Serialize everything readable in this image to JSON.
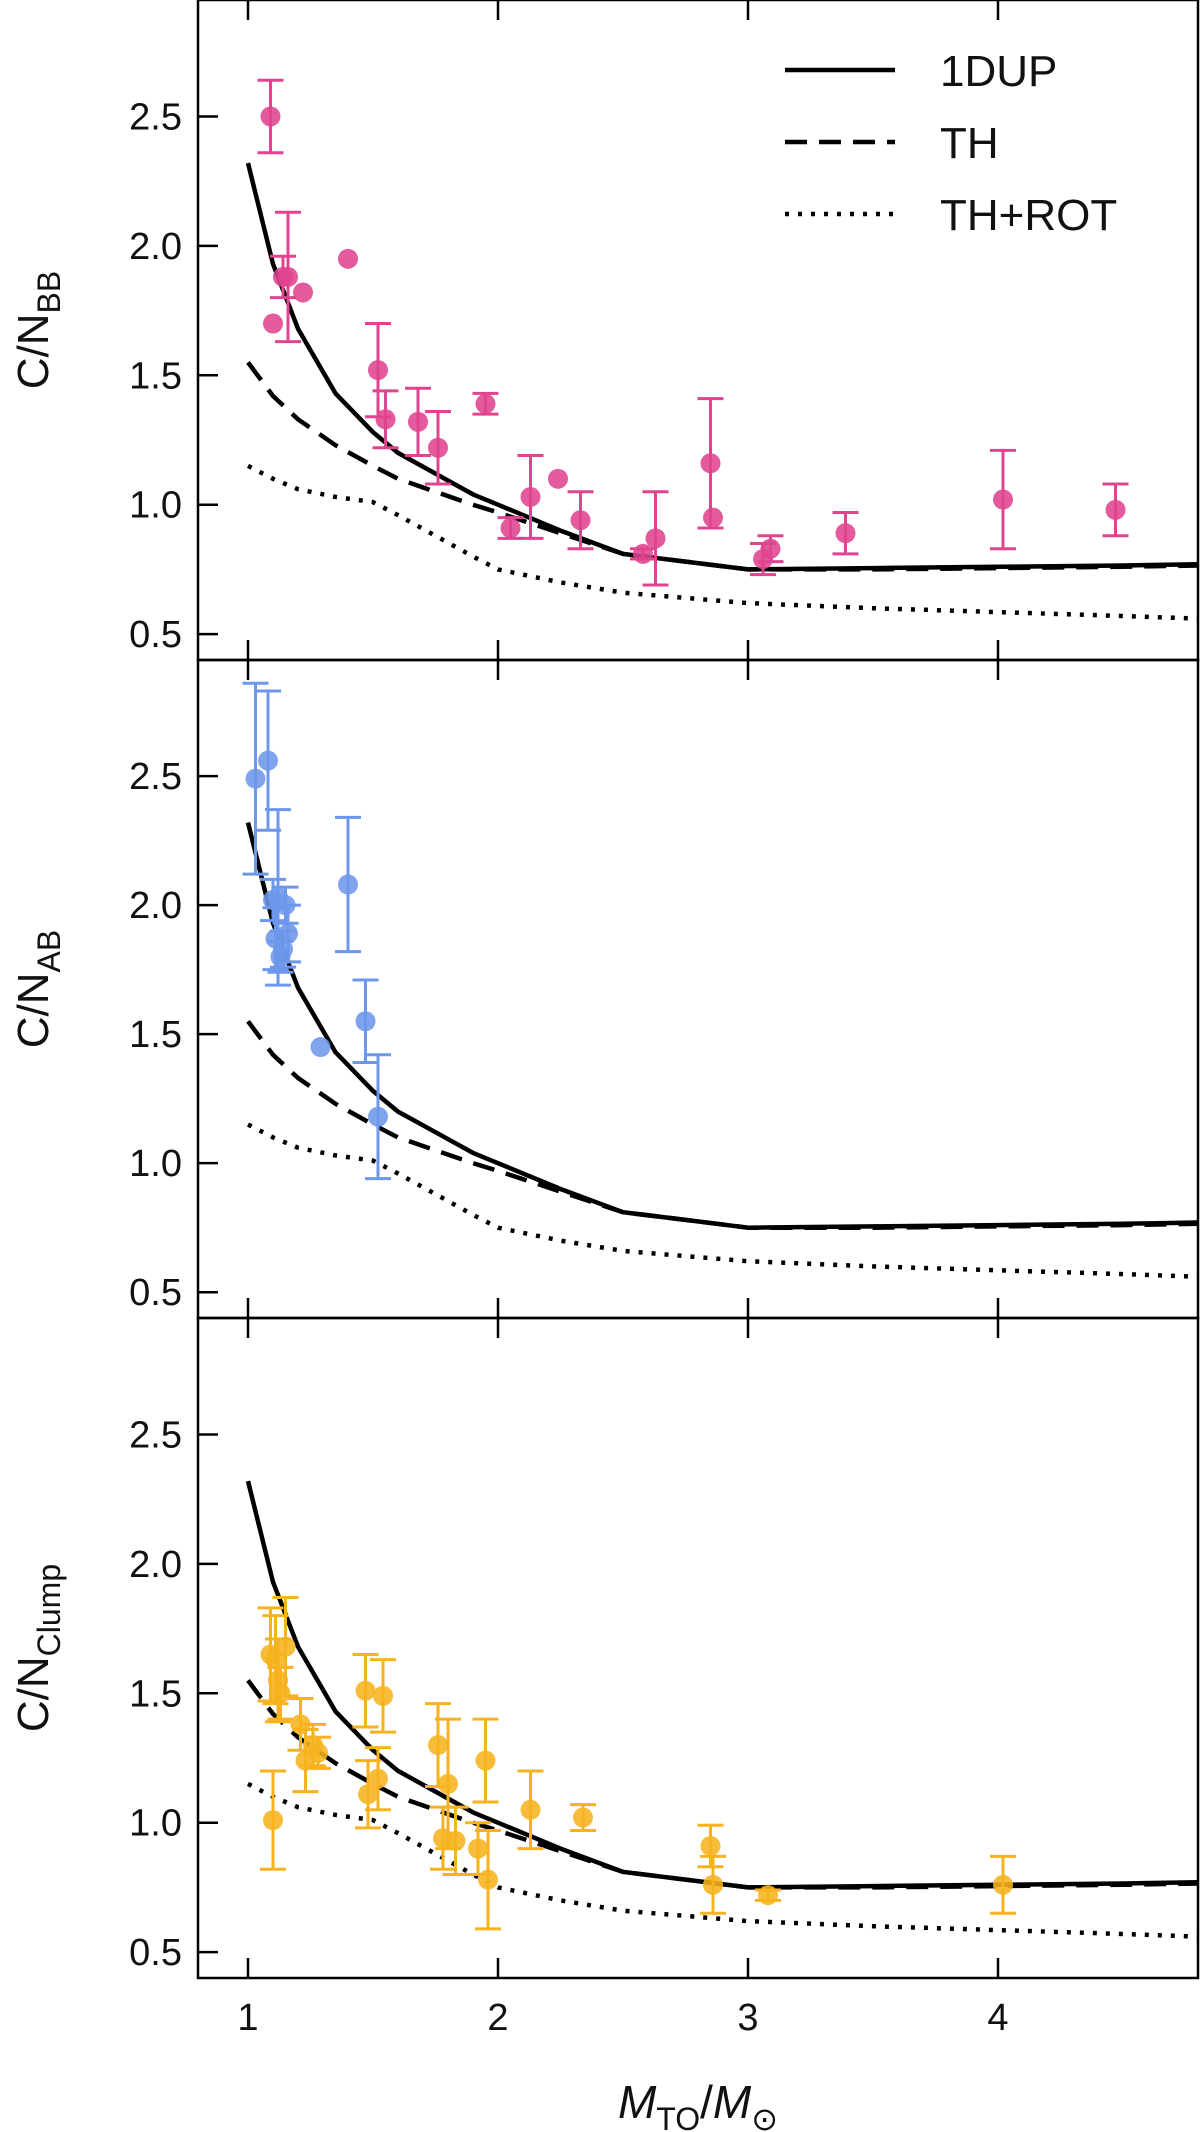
{
  "chart_data": {
    "type": "scatter",
    "x_label_parts": {
      "m": "M",
      "to": "TO",
      "slash": "/",
      "sun": "⊙"
    },
    "xlim": [
      0.8,
      4.8
    ],
    "ylim": [
      0.4,
      2.95
    ],
    "x_ticks": [
      1,
      2,
      3,
      4
    ],
    "y_ticks": [
      0.5,
      1.0,
      1.5,
      2.0,
      2.5
    ],
    "legend": {
      "placement": "top-right",
      "entries": [
        {
          "label": "1DUP",
          "style": "solid"
        },
        {
          "label": "TH",
          "style": "dashed"
        },
        {
          "label": "TH+ROT",
          "style": "dotted"
        }
      ]
    },
    "model_curves": [
      {
        "name": "1DUP",
        "style": "solid",
        "x": [
          1.0,
          1.1,
          1.2,
          1.35,
          1.5,
          1.6,
          1.75,
          1.9,
          2.0,
          2.25,
          2.5,
          2.75,
          3.0,
          3.5,
          4.0,
          4.5,
          4.8
        ],
        "y": [
          2.32,
          1.93,
          1.68,
          1.43,
          1.28,
          1.2,
          1.12,
          1.04,
          1.0,
          0.9,
          0.81,
          0.78,
          0.75,
          0.755,
          0.76,
          0.765,
          0.77
        ]
      },
      {
        "name": "TH",
        "style": "dashed",
        "x": [
          1.0,
          1.1,
          1.2,
          1.35,
          1.5,
          1.6,
          1.75,
          1.9,
          2.0,
          2.25,
          2.5,
          2.75,
          3.0,
          3.5,
          4.0,
          4.5,
          4.8
        ],
        "y": [
          1.55,
          1.42,
          1.33,
          1.23,
          1.15,
          1.1,
          1.05,
          1.0,
          0.97,
          0.89,
          0.81,
          0.78,
          0.75,
          0.75,
          0.755,
          0.76,
          0.765
        ]
      },
      {
        "name": "TH+ROT",
        "style": "dotted",
        "x": [
          1.0,
          1.1,
          1.2,
          1.35,
          1.5,
          1.6,
          1.75,
          1.9,
          2.0,
          2.25,
          2.5,
          2.75,
          3.0,
          3.5,
          4.0,
          4.5,
          4.8
        ],
        "y": [
          1.15,
          1.1,
          1.06,
          1.03,
          1.01,
          0.96,
          0.88,
          0.8,
          0.75,
          0.7,
          0.66,
          0.64,
          0.62,
          0.6,
          0.585,
          0.57,
          0.56
        ]
      }
    ],
    "panels": [
      {
        "ylabel_main": "C/N",
        "ylabel_sub": "BB",
        "color": "#e0448f",
        "points": [
          {
            "x": 1.09,
            "y": 2.5,
            "err": 0.14
          },
          {
            "x": 1.1,
            "y": 1.7,
            "err": 0
          },
          {
            "x": 1.14,
            "y": 1.88,
            "err": 0.08
          },
          {
            "x": 1.16,
            "y": 1.88,
            "err": 0.25
          },
          {
            "x": 1.22,
            "y": 1.82,
            "err": 0
          },
          {
            "x": 1.4,
            "y": 1.95,
            "err": 0
          },
          {
            "x": 1.52,
            "y": 1.52,
            "err": 0.18
          },
          {
            "x": 1.55,
            "y": 1.33,
            "err": 0.11
          },
          {
            "x": 1.68,
            "y": 1.32,
            "err": 0.13
          },
          {
            "x": 1.76,
            "y": 1.22,
            "err": 0.14
          },
          {
            "x": 1.95,
            "y": 1.39,
            "err": 0.04
          },
          {
            "x": 2.05,
            "y": 0.91,
            "err": 0.04
          },
          {
            "x": 2.13,
            "y": 1.03,
            "err": 0.16
          },
          {
            "x": 2.24,
            "y": 1.1,
            "err": 0
          },
          {
            "x": 2.33,
            "y": 0.94,
            "err": 0.11
          },
          {
            "x": 2.58,
            "y": 0.81,
            "err": 0.02
          },
          {
            "x": 2.63,
            "y": 0.87,
            "err": 0.18
          },
          {
            "x": 2.85,
            "y": 1.16,
            "err": 0.25
          },
          {
            "x": 2.86,
            "y": 0.95,
            "err": 0
          },
          {
            "x": 3.06,
            "y": 0.79,
            "err": 0.06
          },
          {
            "x": 3.09,
            "y": 0.83,
            "err": 0.05
          },
          {
            "x": 3.39,
            "y": 0.89,
            "err": 0.08
          },
          {
            "x": 4.02,
            "y": 1.02,
            "err": 0.19
          },
          {
            "x": 4.47,
            "y": 0.98,
            "err": 0.1
          }
        ]
      },
      {
        "ylabel_main": "C/N",
        "ylabel_sub": "AB",
        "color": "#6d97ea",
        "points": [
          {
            "x": 1.03,
            "y": 2.49,
            "err": 0.37
          },
          {
            "x": 1.08,
            "y": 2.56,
            "err": 0.27
          },
          {
            "x": 1.1,
            "y": 2.02,
            "err": 0.08
          },
          {
            "x": 1.11,
            "y": 1.87,
            "err": 0.12
          },
          {
            "x": 1.12,
            "y": 2.03,
            "err": 0.34
          },
          {
            "x": 1.13,
            "y": 1.8,
            "err": 0.06
          },
          {
            "x": 1.14,
            "y": 1.83,
            "err": 0.07
          },
          {
            "x": 1.15,
            "y": 2.0,
            "err": 0.07
          },
          {
            "x": 1.16,
            "y": 1.89,
            "err": 0.11
          },
          {
            "x": 1.29,
            "y": 1.45,
            "err": 0
          },
          {
            "x": 1.4,
            "y": 2.08,
            "err": 0.26
          },
          {
            "x": 1.47,
            "y": 1.55,
            "err": 0.16
          },
          {
            "x": 1.52,
            "y": 1.18,
            "err": 0.24
          }
        ]
      },
      {
        "ylabel_main": "C/N",
        "ylabel_sub": "Clump",
        "color": "#f6b31f",
        "points": [
          {
            "x": 1.09,
            "y": 1.65,
            "err": 0.18
          },
          {
            "x": 1.1,
            "y": 1.01,
            "err": 0.19
          },
          {
            "x": 1.11,
            "y": 1.63,
            "err": 0.17
          },
          {
            "x": 1.12,
            "y": 1.55,
            "err": 0.16
          },
          {
            "x": 1.13,
            "y": 1.5,
            "err": 0.1
          },
          {
            "x": 1.15,
            "y": 1.68,
            "err": 0.19
          },
          {
            "x": 1.21,
            "y": 1.38,
            "err": 0.1
          },
          {
            "x": 1.23,
            "y": 1.24,
            "err": 0.12
          },
          {
            "x": 1.26,
            "y": 1.3,
            "err": 0.08
          },
          {
            "x": 1.28,
            "y": 1.27,
            "err": 0.06
          },
          {
            "x": 1.47,
            "y": 1.51,
            "err": 0.14
          },
          {
            "x": 1.48,
            "y": 1.11,
            "err": 0.13
          },
          {
            "x": 1.52,
            "y": 1.17,
            "err": 0.12
          },
          {
            "x": 1.54,
            "y": 1.49,
            "err": 0.14
          },
          {
            "x": 1.76,
            "y": 1.3,
            "err": 0.16
          },
          {
            "x": 1.78,
            "y": 0.94,
            "err": 0.12
          },
          {
            "x": 1.8,
            "y": 1.15,
            "err": 0.25
          },
          {
            "x": 1.83,
            "y": 0.93,
            "err": 0.13
          },
          {
            "x": 1.92,
            "y": 0.9,
            "err": 0.1
          },
          {
            "x": 1.95,
            "y": 1.24,
            "err": 0.16
          },
          {
            "x": 1.96,
            "y": 0.78,
            "err": 0.19
          },
          {
            "x": 2.13,
            "y": 1.05,
            "err": 0.15
          },
          {
            "x": 2.34,
            "y": 1.02,
            "err": 0.05
          },
          {
            "x": 2.85,
            "y": 0.91,
            "err": 0.08
          },
          {
            "x": 2.86,
            "y": 0.76,
            "err": 0.11
          },
          {
            "x": 3.08,
            "y": 0.72,
            "err": 0.02
          },
          {
            "x": 4.02,
            "y": 0.76,
            "err": 0.11
          }
        ]
      }
    ]
  }
}
